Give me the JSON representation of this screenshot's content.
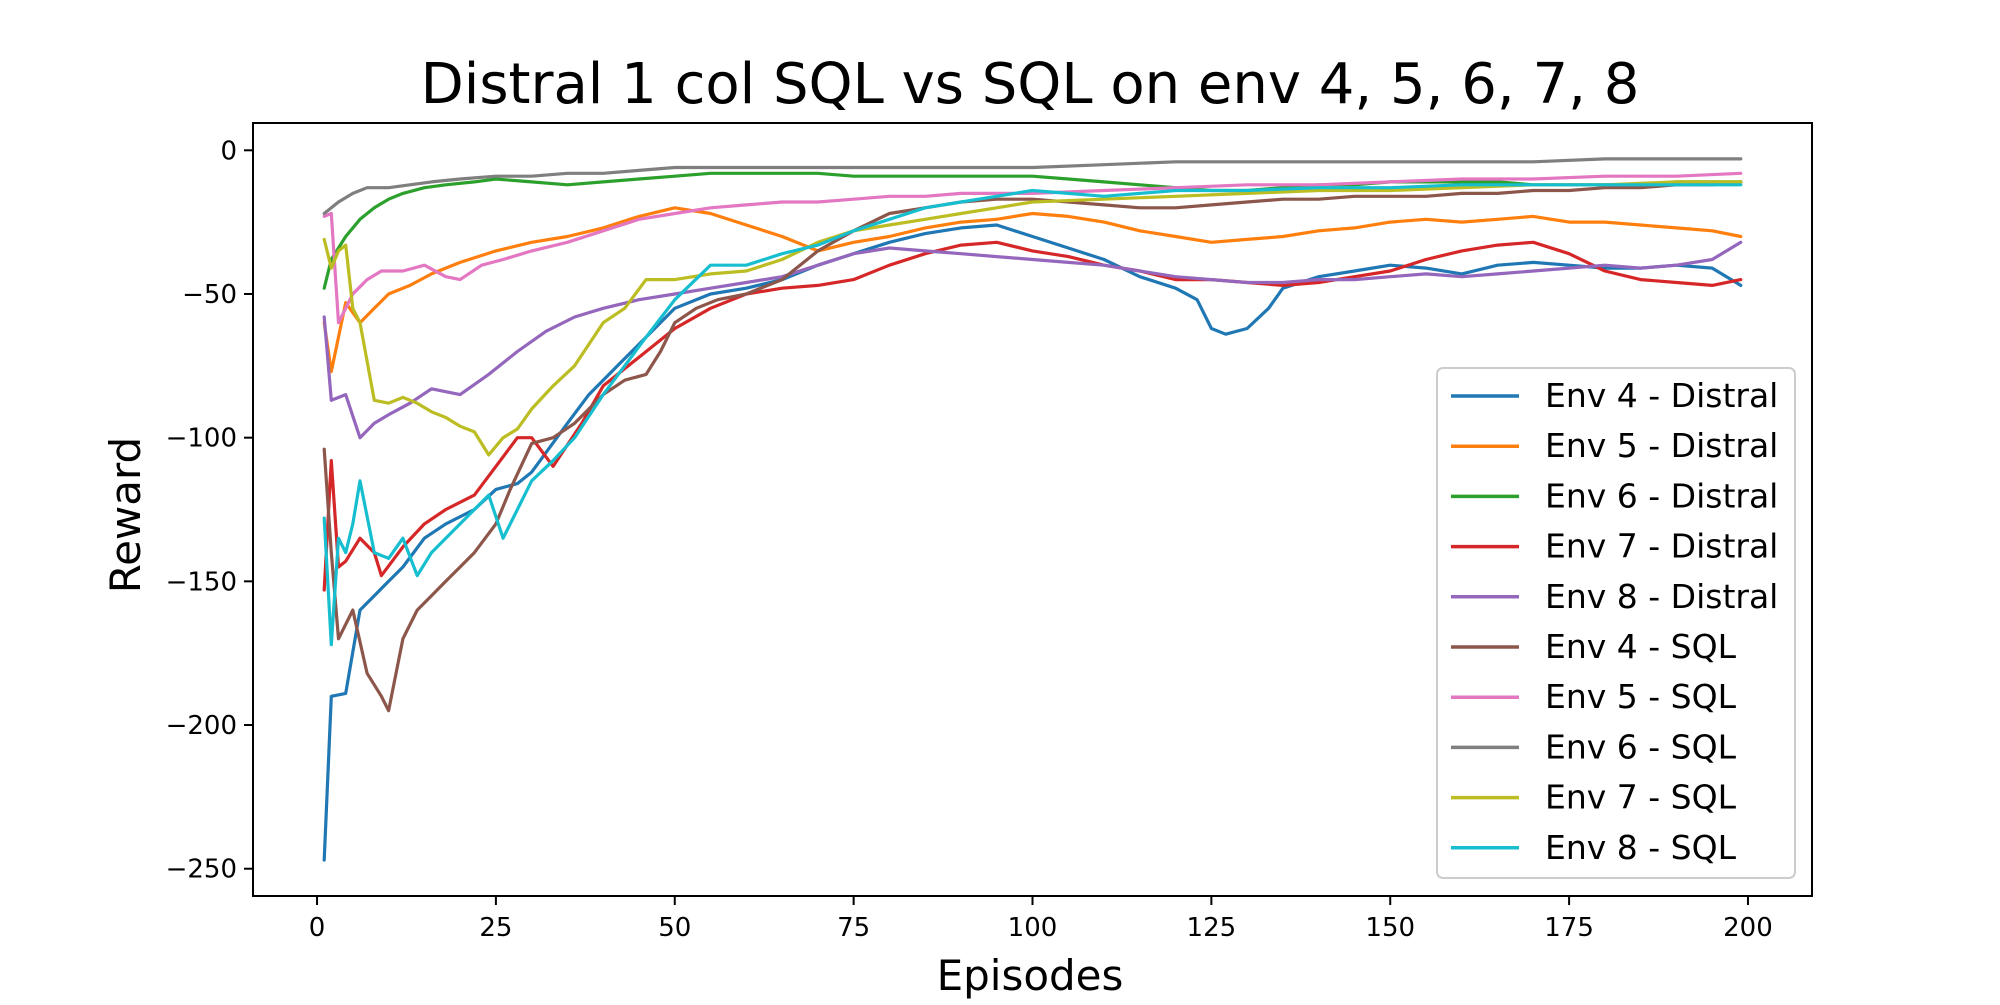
{
  "chart_data": {
    "type": "line",
    "title": "Distral 1 col SQL vs SQL on env 4, 5, 6, 7, 8",
    "xlabel": "Episodes",
    "ylabel": "Reward",
    "xlim": [
      -8.95,
      208.95
    ],
    "ylim": [
      -259.5,
      9.5
    ],
    "xticks": [
      0,
      25,
      50,
      75,
      100,
      125,
      150,
      175,
      200
    ],
    "xtick_labels": [
      "0",
      "25",
      "50",
      "75",
      "100",
      "125",
      "150",
      "175",
      "200"
    ],
    "yticks": [
      0,
      -50,
      -100,
      -150,
      -200,
      -250
    ],
    "ytick_labels": [
      "0",
      "−50",
      "−100",
      "−150",
      "−200",
      "−250"
    ],
    "grid": false,
    "legend_position": "center-right",
    "series": [
      {
        "name": "Env 4 - Distral",
        "color": "#1f77b4",
        "x": [
          1,
          2,
          4,
          6,
          8,
          10,
          12,
          15,
          18,
          22,
          25,
          28,
          30,
          35,
          38,
          42,
          46,
          50,
          55,
          60,
          65,
          70,
          75,
          80,
          85,
          90,
          95,
          100,
          105,
          110,
          115,
          120,
          123,
          125,
          127,
          130,
          133,
          135,
          140,
          145,
          150,
          155,
          160,
          165,
          170,
          175,
          180,
          185,
          190,
          195,
          199
        ],
        "y": [
          -247,
          -190,
          -189,
          -160,
          -155,
          -150,
          -145,
          -135,
          -130,
          -125,
          -118,
          -116,
          -112,
          -95,
          -85,
          -75,
          -65,
          -55,
          -50,
          -48,
          -45,
          -40,
          -36,
          -32,
          -29,
          -27,
          -26,
          -30,
          -34,
          -38,
          -44,
          -48,
          -52,
          -62,
          -64,
          -62,
          -55,
          -48,
          -44,
          -42,
          -40,
          -41,
          -43,
          -40,
          -39,
          -40,
          -41,
          -41,
          -40,
          -41,
          -47
        ]
      },
      {
        "name": "Env 5 - Distral",
        "color": "#ff7f0e",
        "x": [
          1,
          2,
          4,
          6,
          8,
          10,
          13,
          16,
          20,
          25,
          30,
          35,
          40,
          45,
          50,
          55,
          60,
          65,
          70,
          75,
          80,
          85,
          90,
          95,
          100,
          105,
          110,
          115,
          120,
          125,
          130,
          135,
          140,
          145,
          150,
          155,
          160,
          165,
          170,
          175,
          180,
          185,
          190,
          195,
          199
        ],
        "y": [
          -60,
          -77,
          -53,
          -60,
          -55,
          -50,
          -47,
          -43,
          -39,
          -35,
          -32,
          -30,
          -27,
          -23,
          -20,
          -22,
          -26,
          -30,
          -35,
          -32,
          -30,
          -27,
          -25,
          -24,
          -22,
          -23,
          -25,
          -28,
          -30,
          -32,
          -31,
          -30,
          -28,
          -27,
          -25,
          -24,
          -25,
          -24,
          -23,
          -25,
          -25,
          -26,
          -27,
          -28,
          -30
        ]
      },
      {
        "name": "Env 6 - Distral",
        "color": "#2ca02c",
        "x": [
          1,
          2,
          4,
          6,
          8,
          10,
          12,
          15,
          18,
          22,
          25,
          30,
          35,
          40,
          45,
          50,
          55,
          60,
          65,
          70,
          75,
          80,
          85,
          90,
          95,
          100,
          105,
          110,
          115,
          120,
          125,
          130,
          135,
          140,
          145,
          150,
          155,
          160,
          165,
          170,
          175,
          180,
          185,
          190,
          195,
          199
        ],
        "y": [
          -48,
          -38,
          -30,
          -24,
          -20,
          -17,
          -15,
          -13,
          -12,
          -11,
          -10,
          -11,
          -12,
          -11,
          -10,
          -9,
          -8,
          -8,
          -8,
          -8,
          -9,
          -9,
          -9,
          -9,
          -9,
          -9,
          -10,
          -11,
          -12,
          -13,
          -14,
          -14,
          -13,
          -12,
          -12,
          -11,
          -11,
          -11,
          -11,
          -12,
          -12,
          -12,
          -12,
          -11,
          -11,
          -11
        ]
      },
      {
        "name": "Env 7 - Distral",
        "color": "#d62728",
        "x": [
          1,
          2,
          3,
          4,
          6,
          8,
          9,
          12,
          15,
          18,
          22,
          25,
          28,
          30,
          33,
          37,
          40,
          45,
          50,
          55,
          60,
          65,
          70,
          75,
          80,
          85,
          90,
          95,
          100,
          105,
          110,
          115,
          120,
          125,
          130,
          135,
          140,
          145,
          150,
          155,
          160,
          165,
          170,
          175,
          180,
          185,
          190,
          195,
          199
        ],
        "y": [
          -153,
          -108,
          -145,
          -143,
          -135,
          -140,
          -148,
          -138,
          -130,
          -125,
          -120,
          -110,
          -100,
          -100,
          -110,
          -95,
          -82,
          -72,
          -62,
          -55,
          -50,
          -48,
          -47,
          -45,
          -40,
          -36,
          -33,
          -32,
          -35,
          -37,
          -40,
          -42,
          -45,
          -45,
          -46,
          -47,
          -46,
          -44,
          -42,
          -38,
          -35,
          -33,
          -32,
          -36,
          -42,
          -45,
          -46,
          -47,
          -45
        ]
      },
      {
        "name": "Env 8 - Distral",
        "color": "#9467bd",
        "x": [
          1,
          2,
          4,
          6,
          8,
          10,
          13,
          16,
          20,
          24,
          28,
          32,
          36,
          40,
          45,
          50,
          55,
          60,
          65,
          70,
          75,
          80,
          85,
          90,
          95,
          100,
          105,
          110,
          115,
          120,
          125,
          130,
          135,
          140,
          145,
          150,
          155,
          160,
          165,
          170,
          175,
          180,
          185,
          190,
          195,
          199
        ],
        "y": [
          -58,
          -87,
          -85,
          -100,
          -95,
          -92,
          -88,
          -83,
          -85,
          -78,
          -70,
          -63,
          -58,
          -55,
          -52,
          -50,
          -48,
          -46,
          -44,
          -40,
          -36,
          -34,
          -35,
          -36,
          -37,
          -38,
          -39,
          -40,
          -42,
          -44,
          -45,
          -46,
          -46,
          -45,
          -45,
          -44,
          -43,
          -44,
          -43,
          -42,
          -41,
          -40,
          -41,
          -40,
          -38,
          -32
        ]
      },
      {
        "name": "Env 4 - SQL",
        "color": "#8c564b",
        "x": [
          1,
          2,
          3,
          5,
          7,
          9,
          10,
          12,
          14,
          16,
          18,
          20,
          22,
          25,
          27,
          30,
          33,
          36,
          40,
          43,
          46,
          48,
          50,
          53,
          56,
          60,
          65,
          70,
          75,
          80,
          85,
          90,
          95,
          100,
          105,
          110,
          115,
          120,
          125,
          130,
          135,
          140,
          145,
          150,
          155,
          160,
          165,
          170,
          175,
          180,
          185,
          190,
          195,
          199
        ],
        "y": [
          -104,
          -140,
          -170,
          -160,
          -182,
          -190,
          -195,
          -170,
          -160,
          -155,
          -150,
          -145,
          -140,
          -130,
          -118,
          -102,
          -100,
          -95,
          -85,
          -80,
          -78,
          -70,
          -60,
          -55,
          -52,
          -50,
          -45,
          -35,
          -28,
          -22,
          -20,
          -18,
          -17,
          -17,
          -18,
          -19,
          -20,
          -20,
          -19,
          -18,
          -17,
          -17,
          -16,
          -16,
          -16,
          -15,
          -15,
          -14,
          -14,
          -13,
          -13,
          -12,
          -12,
          -11
        ]
      },
      {
        "name": "Env 5 - SQL",
        "color": "#e377c2",
        "x": [
          1,
          2,
          3,
          5,
          7,
          9,
          12,
          15,
          18,
          20,
          23,
          26,
          30,
          35,
          40,
          45,
          50,
          55,
          60,
          65,
          70,
          75,
          80,
          85,
          90,
          95,
          100,
          110,
          120,
          130,
          140,
          150,
          160,
          170,
          180,
          190,
          199
        ],
        "y": [
          -23,
          -22,
          -60,
          -50,
          -45,
          -42,
          -42,
          -40,
          -44,
          -45,
          -40,
          -38,
          -35,
          -32,
          -28,
          -24,
          -22,
          -20,
          -19,
          -18,
          -18,
          -17,
          -16,
          -16,
          -15,
          -15,
          -15,
          -14,
          -13,
          -12,
          -12,
          -11,
          -10,
          -10,
          -9,
          -9,
          -8
        ]
      },
      {
        "name": "Env 6 - SQL",
        "color": "#7f7f7f",
        "x": [
          1,
          3,
          5,
          7,
          10,
          13,
          16,
          20,
          25,
          30,
          35,
          40,
          45,
          50,
          55,
          60,
          65,
          70,
          80,
          90,
          100,
          110,
          120,
          130,
          140,
          150,
          160,
          170,
          180,
          190,
          199
        ],
        "y": [
          -22,
          -18,
          -15,
          -13,
          -13,
          -12,
          -11,
          -10,
          -9,
          -9,
          -8,
          -8,
          -7,
          -6,
          -6,
          -6,
          -6,
          -6,
          -6,
          -6,
          -6,
          -5,
          -4,
          -4,
          -4,
          -4,
          -4,
          -4,
          -3,
          -3,
          -3
        ]
      },
      {
        "name": "Env 7 - SQL",
        "color": "#bcbd22",
        "x": [
          1,
          2,
          3,
          4,
          5,
          6,
          8,
          10,
          12,
          14,
          16,
          18,
          20,
          22,
          24,
          26,
          28,
          30,
          33,
          36,
          40,
          43,
          46,
          50,
          55,
          60,
          65,
          70,
          75,
          80,
          85,
          90,
          95,
          100,
          110,
          120,
          130,
          140,
          150,
          160,
          170,
          180,
          190,
          199
        ],
        "y": [
          -31,
          -41,
          -35,
          -33,
          -55,
          -60,
          -87,
          -88,
          -86,
          -88,
          -91,
          -93,
          -96,
          -98,
          -106,
          -100,
          -97,
          -90,
          -82,
          -75,
          -60,
          -55,
          -45,
          -45,
          -43,
          -42,
          -38,
          -32,
          -28,
          -26,
          -24,
          -22,
          -20,
          -18,
          -17,
          -16,
          -15,
          -14,
          -14,
          -13,
          -12,
          -12,
          -11,
          -11
        ]
      },
      {
        "name": "Env 8 - SQL",
        "color": "#17becf",
        "x": [
          1,
          2,
          3,
          4,
          5,
          6,
          8,
          10,
          12,
          14,
          16,
          18,
          20,
          22,
          24,
          26,
          28,
          30,
          33,
          36,
          40,
          43,
          46,
          50,
          55,
          60,
          65,
          70,
          75,
          80,
          85,
          90,
          95,
          100,
          105,
          110,
          115,
          120,
          125,
          130,
          140,
          150,
          160,
          170,
          180,
          190,
          199
        ],
        "y": [
          -128,
          -172,
          -135,
          -140,
          -130,
          -115,
          -140,
          -142,
          -135,
          -148,
          -140,
          -135,
          -130,
          -125,
          -120,
          -135,
          -125,
          -115,
          -108,
          -100,
          -85,
          -75,
          -65,
          -52,
          -40,
          -40,
          -36,
          -33,
          -28,
          -24,
          -20,
          -18,
          -16,
          -14,
          -15,
          -16,
          -15,
          -14,
          -14,
          -14,
          -13,
          -13,
          -12,
          -12,
          -12,
          -12,
          -12
        ]
      }
    ]
  }
}
